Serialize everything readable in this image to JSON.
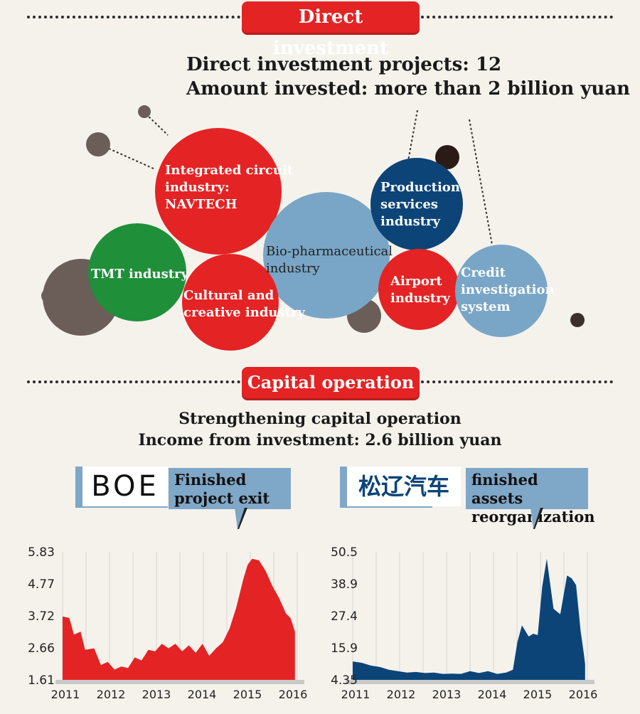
{
  "sections": {
    "direct": {
      "title": "Direct investment"
    },
    "capital": {
      "title": "Capital operation"
    }
  },
  "direct_summary": {
    "line1": "Direct investment projects: 12",
    "line2": "Amount invested: more than 2 billion yuan"
  },
  "bubbles": [
    {
      "id": "ic",
      "label_lines": [
        "Integrated circuit",
        "industry:",
        "NAVTECH"
      ],
      "color": "#e42324"
    },
    {
      "id": "tmt",
      "label_lines": [
        "TMT industry"
      ],
      "color": "#1f8f3a"
    },
    {
      "id": "cultural",
      "label_lines": [
        "Cultural and",
        "creative industry"
      ],
      "color": "#e42324"
    },
    {
      "id": "bio",
      "label_lines": [
        "Bio-pharmaceutical",
        "industry"
      ],
      "color": "#79a6c7"
    },
    {
      "id": "production",
      "label_lines": [
        "Production",
        "services",
        "industry"
      ],
      "color": "#0c4478"
    },
    {
      "id": "airport",
      "label_lines": [
        "Airport",
        "industry"
      ],
      "color": "#e42324"
    },
    {
      "id": "credit",
      "label_lines": [
        "Credit",
        "investigation",
        "system"
      ],
      "color": "#79a6c7"
    }
  ],
  "capital_summary": {
    "line1": "Strengthening capital operation",
    "line2": "Income from investment: 2.6 billion yuan"
  },
  "companies": [
    {
      "logo_text": "BOE",
      "banner_lines": [
        "Finished",
        "project exit"
      ]
    },
    {
      "logo_text": "松辽汽车",
      "banner_lines": [
        "finished assets",
        "reorganization"
      ]
    }
  ],
  "chart_data": [
    {
      "type": "area",
      "color": "#e42324",
      "yticks": [
        "5.83",
        "4.77",
        "3.72",
        "2.66",
        "1.61"
      ],
      "ylim": [
        1.61,
        5.83
      ],
      "xlabels": [
        "2011",
        "2012",
        "2013",
        "2014",
        "2015",
        "2016"
      ],
      "xlim": [
        2011,
        2016.2
      ],
      "x": [
        2011.0,
        2011.15,
        2011.25,
        2011.4,
        2011.5,
        2011.7,
        2011.85,
        2012.0,
        2012.15,
        2012.3,
        2012.45,
        2012.6,
        2012.75,
        2012.9,
        2013.05,
        2013.2,
        2013.35,
        2013.5,
        2013.65,
        2013.8,
        2013.95,
        2014.1,
        2014.25,
        2014.4,
        2014.55,
        2014.7,
        2014.85,
        2015.0,
        2015.1,
        2015.2,
        2015.35,
        2015.5,
        2015.65,
        2015.8,
        2015.95,
        2016.05,
        2016.15
      ],
      "y": [
        3.7,
        3.65,
        3.1,
        3.2,
        2.6,
        2.65,
        2.1,
        2.2,
        1.95,
        2.05,
        2.0,
        2.35,
        2.25,
        2.6,
        2.55,
        2.8,
        2.65,
        2.8,
        2.55,
        2.75,
        2.5,
        2.8,
        2.4,
        2.65,
        2.85,
        3.3,
        4.0,
        4.9,
        5.4,
        5.6,
        5.55,
        5.2,
        4.7,
        4.3,
        3.8,
        3.65,
        3.2
      ]
    },
    {
      "type": "area",
      "color": "#0c4478",
      "yticks": [
        "50.5",
        "38.9",
        "27.4",
        "15.9",
        "4.35"
      ],
      "ylim": [
        4.35,
        50.5
      ],
      "xlabels": [
        "2011",
        "2012",
        "2013",
        "2014",
        "2015",
        "2016"
      ],
      "xlim": [
        2011,
        2016.2
      ],
      "x": [
        2011.0,
        2011.2,
        2011.4,
        2011.6,
        2011.8,
        2012.0,
        2012.2,
        2012.4,
        2012.6,
        2012.8,
        2013.0,
        2013.2,
        2013.4,
        2013.6,
        2013.8,
        2014.0,
        2014.2,
        2014.4,
        2014.55,
        2014.65,
        2014.75,
        2014.9,
        2015.0,
        2015.1,
        2015.2,
        2015.3,
        2015.45,
        2015.6,
        2015.75,
        2015.85,
        2015.95,
        2016.05,
        2016.12,
        2016.15
      ],
      "y": [
        11.0,
        10.5,
        9.5,
        9.0,
        8.0,
        7.5,
        7.0,
        7.2,
        6.8,
        7.0,
        6.5,
        6.6,
        6.5,
        7.5,
        6.8,
        7.5,
        6.5,
        7.0,
        8.0,
        18.0,
        24.0,
        20.0,
        21.0,
        20.5,
        38.0,
        48.0,
        30.0,
        28.0,
        42.0,
        41.0,
        38.5,
        22.0,
        14.0,
        10.0
      ]
    }
  ]
}
